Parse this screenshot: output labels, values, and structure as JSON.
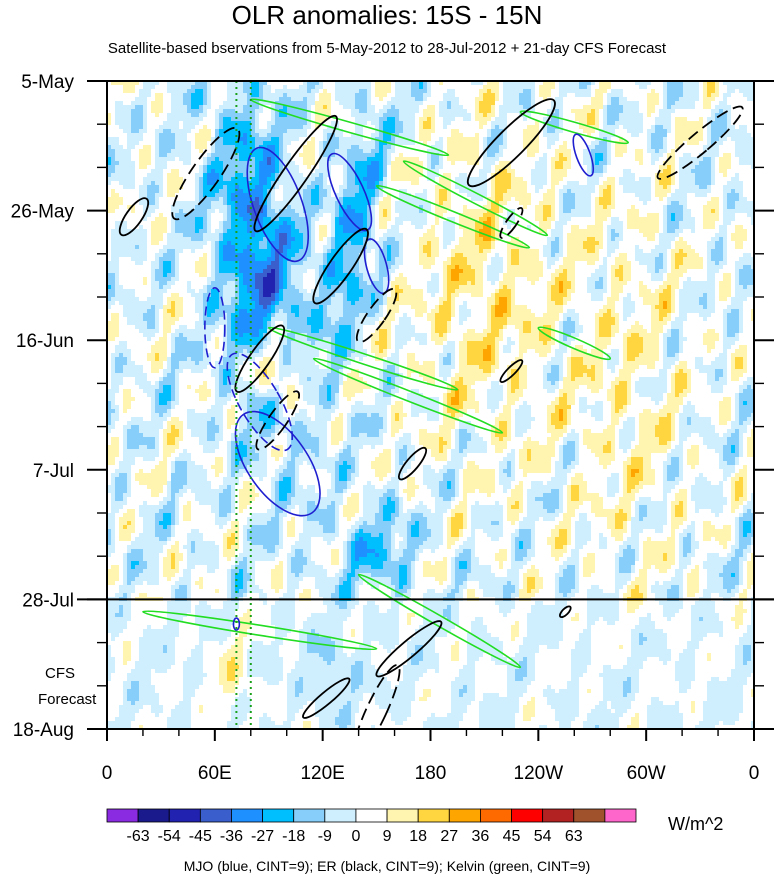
{
  "chart_data": {
    "type": "heatmap",
    "title": "OLR anomalies: 15S - 15N",
    "subtitle": "Satellite-based bservations from 5-May-2012 to 28-Jul-2012 + 21-day CFS Forecast",
    "x_axis": {
      "range_deg": [
        0,
        360
      ],
      "ticks": [
        {
          "deg": 0,
          "label": "0"
        },
        {
          "deg": 60,
          "label": "60E"
        },
        {
          "deg": 120,
          "label": "120E"
        },
        {
          "deg": 180,
          "label": "180"
        },
        {
          "deg": 240,
          "label": "120W"
        },
        {
          "deg": 300,
          "label": "60W"
        },
        {
          "deg": 360,
          "label": "0"
        }
      ]
    },
    "y_axis": {
      "range_days": [
        0,
        105
      ],
      "ticks": [
        {
          "day": 0,
          "label": "5-May"
        },
        {
          "day": 21,
          "label": "26-May"
        },
        {
          "day": 42,
          "label": "16-Jun"
        },
        {
          "day": 63,
          "label": "7-Jul"
        },
        {
          "day": 84,
          "label": "28-Jul"
        },
        {
          "day": 105,
          "label": "18-Aug"
        }
      ],
      "forecast_start_day": 84,
      "forecast_label_line1": "CFS",
      "forecast_label_line2": "Forecast"
    },
    "colorbar": {
      "levels": [
        "-63",
        "-54",
        "-45",
        "-36",
        "-27",
        "-18",
        "-9",
        "0",
        "9",
        "18",
        "27",
        "36",
        "45",
        "54",
        "63"
      ],
      "colors": [
        "#8a2be2",
        "#1a1a8c",
        "#2222b0",
        "#3a5fcd",
        "#1e90ff",
        "#00bfff",
        "#87cefa",
        "#cfefff",
        "#ffffff",
        "#fff5b0",
        "#ffd640",
        "#ffa500",
        "#ff6a00",
        "#ff0000",
        "#b22222",
        "#a0522d",
        "#ff66cc"
      ],
      "units": "W/m^2"
    },
    "reference_lines_deg": [
      72,
      80
    ],
    "overlays": {
      "mjo_color": "#1f1fd0",
      "er_color": "#000000",
      "kelvin_color": "#22dd22",
      "legend": "MJO (blue, CINT=9); ER (black, CINT=9); Kelvin (green, CINT=9)"
    }
  }
}
